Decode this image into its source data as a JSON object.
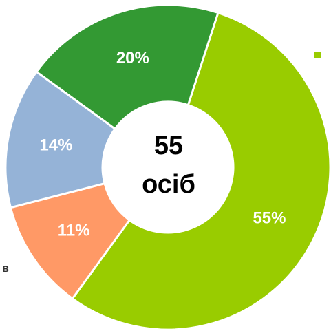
{
  "chart_data": {
    "type": "pie",
    "categories": [
      null,
      null,
      null,
      null
    ],
    "values": [
      55,
      11,
      14,
      20
    ],
    "value_labels": [
      "55%",
      "11%",
      "14%",
      "20%"
    ],
    "colors": [
      "#99cc00",
      "#ff9966",
      "#95b3d7",
      "#339933"
    ],
    "center_text": [
      "55",
      "осіб"
    ],
    "annotations": [
      "в"
    ]
  }
}
